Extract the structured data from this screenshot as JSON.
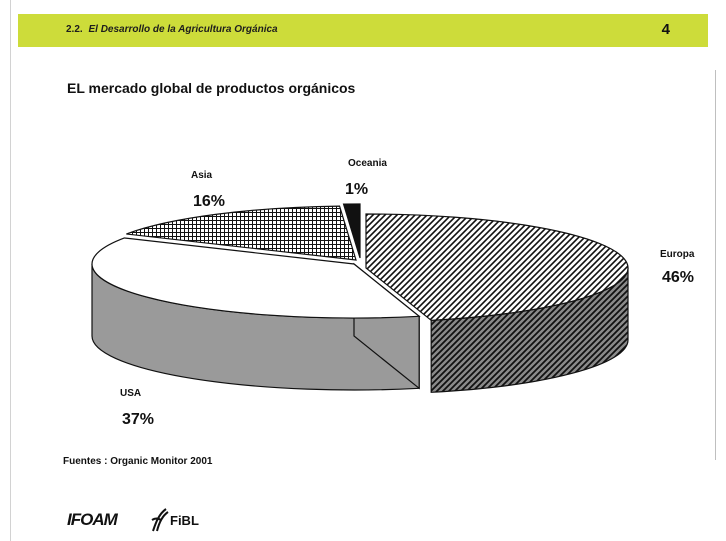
{
  "header": {
    "section_number": "2.2.",
    "section_title": "El Desarrollo de la Agricultura Orgánica",
    "page_number": "4",
    "bar_color": "#cddc3a"
  },
  "slide_title": "EL mercado global de productos orgánicos",
  "source_note": "Fuentes : Organic Monitor 2001",
  "logos": {
    "ifoam": "IFOAM",
    "fibl": "FiBL"
  },
  "chart_data": {
    "type": "pie",
    "style": "3d-exploded",
    "title": "",
    "slices": [
      {
        "label": "Europa",
        "percent_label": "46%",
        "value": 46,
        "pattern": "diagonal-hatch"
      },
      {
        "label": "USA",
        "percent_label": "37%",
        "value": 37,
        "pattern": "white-top-gray-side"
      },
      {
        "label": "Asia",
        "percent_label": "16%",
        "value": 16,
        "pattern": "crosshatch"
      },
      {
        "label": "Oceania",
        "percent_label": "1%",
        "value": 1,
        "pattern": "solid-black"
      }
    ]
  }
}
